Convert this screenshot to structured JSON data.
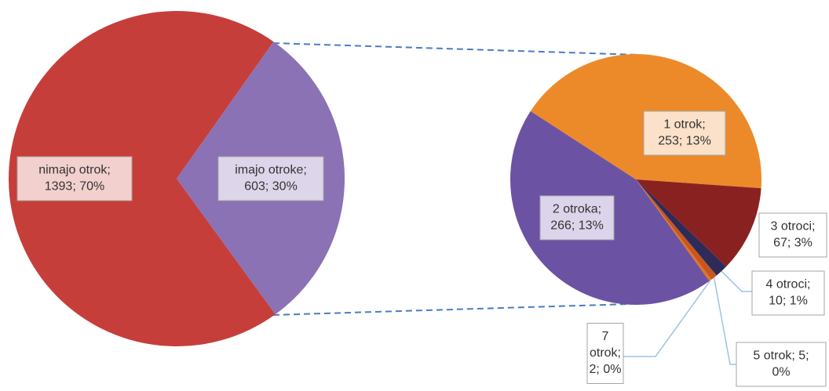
{
  "chart_data": {
    "type": "pie_of_pie",
    "values": [
      1393,
      603
    ],
    "colors": [
      "#c63e3a",
      "#8a72b4"
    ],
    "value_labels": [
      [
        "nimajo otrok;",
        "1393; 70%"
      ],
      [
        "imajo otroke;",
        "603; 30%"
      ]
    ],
    "secondary": {
      "values": [
        253,
        67,
        10,
        5,
        2,
        266
      ],
      "colors": [
        "#ec8a2a",
        "#8a2121",
        "#2f2b58",
        "#c9561c",
        "#e0732a",
        "#6c52a3"
      ],
      "value_labels": [
        [
          "1 otrok;",
          "253; 13%"
        ],
        [
          "3 otroci;",
          "67; 3%"
        ],
        [
          "4 otroci;",
          "10; 1%"
        ],
        [
          "5 otrok; 5;",
          "0%"
        ],
        [
          "7",
          "otrok;",
          "2; 0%"
        ],
        [
          "2 otroka;",
          "266; 13%"
        ]
      ]
    }
  }
}
